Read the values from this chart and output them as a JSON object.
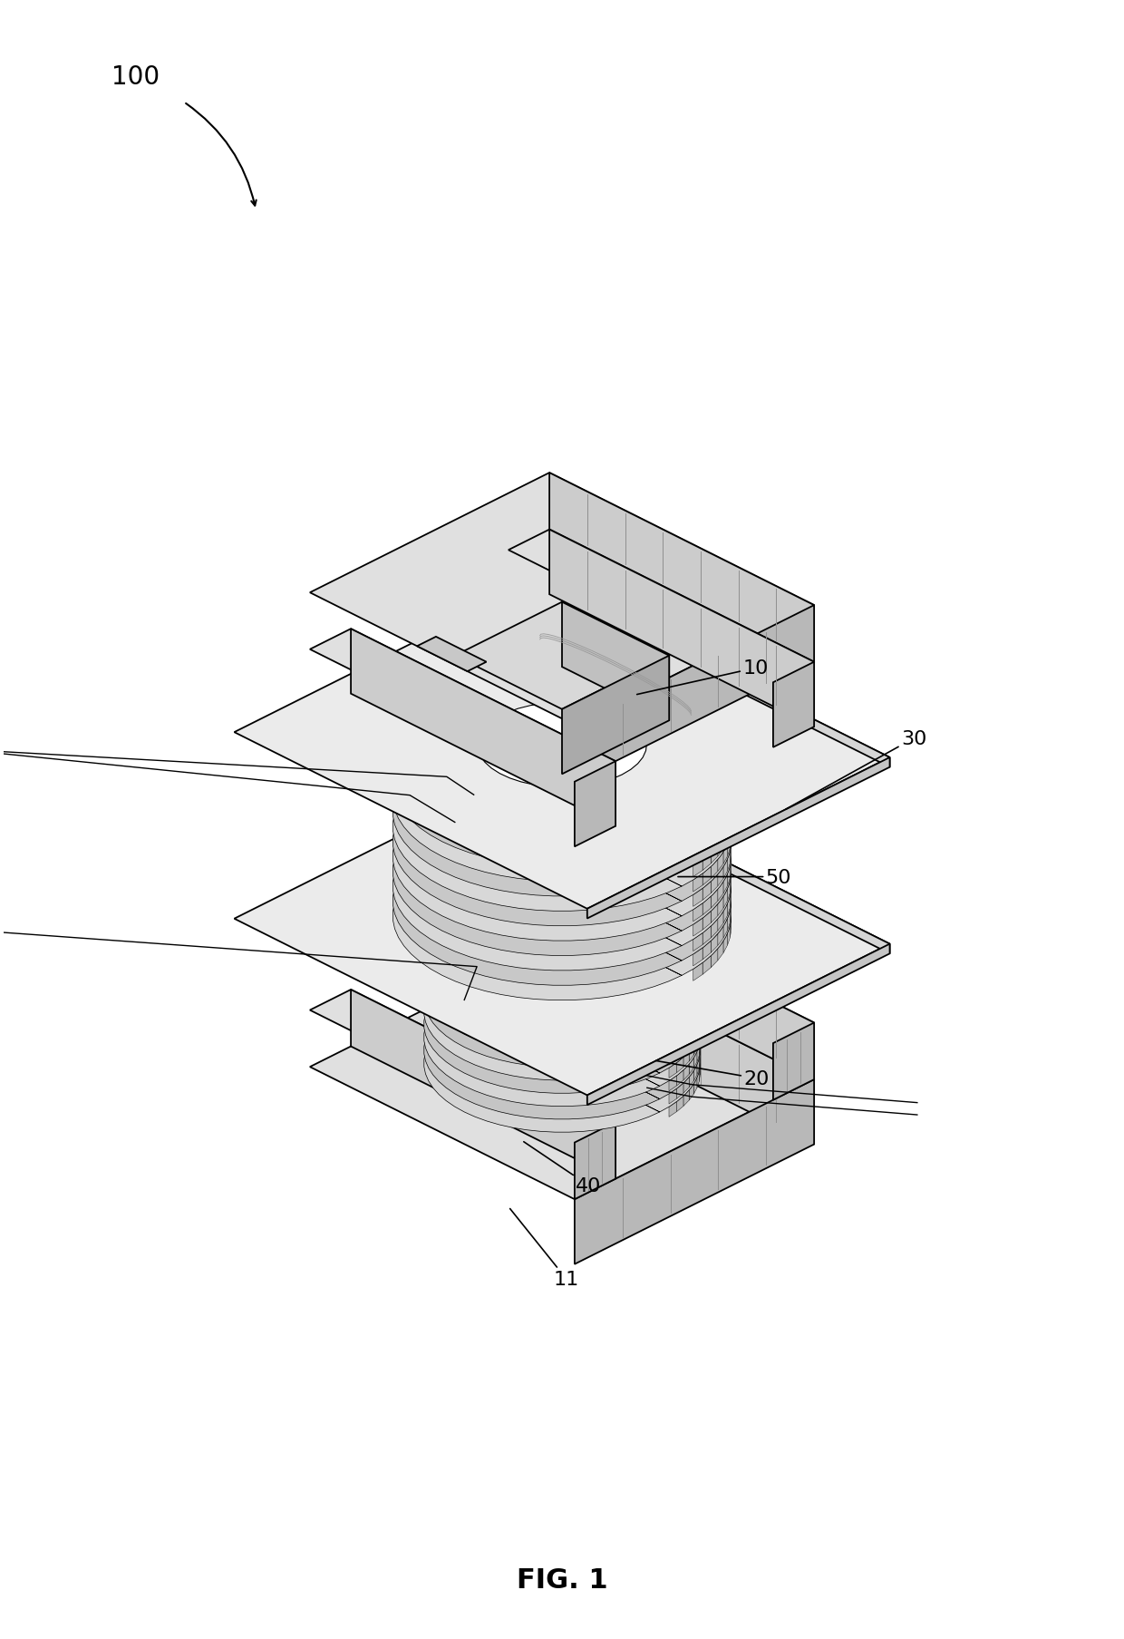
{
  "title": "FIG. 1",
  "title_fontsize": 22,
  "title_fontweight": "bold",
  "background_color": "#ffffff",
  "label_100": "100",
  "label_10": "10",
  "label_11": "11",
  "label_20": "20",
  "label_30": "30",
  "label_40": "40",
  "label_50": "50",
  "line_color": "#000000",
  "face_white": "#ffffff",
  "face_light": "#f0f0f0",
  "face_mid": "#d8d8d8",
  "face_dark": "#b8b8b8",
  "face_darker": "#a0a0a0",
  "coil_light": "#e8e8e8",
  "coil_mid": "#d0d0d0",
  "coil_dark": "#b0b0b0",
  "label_fontsize": 16,
  "lw_main": 1.3,
  "lw_hatch": 0.7
}
